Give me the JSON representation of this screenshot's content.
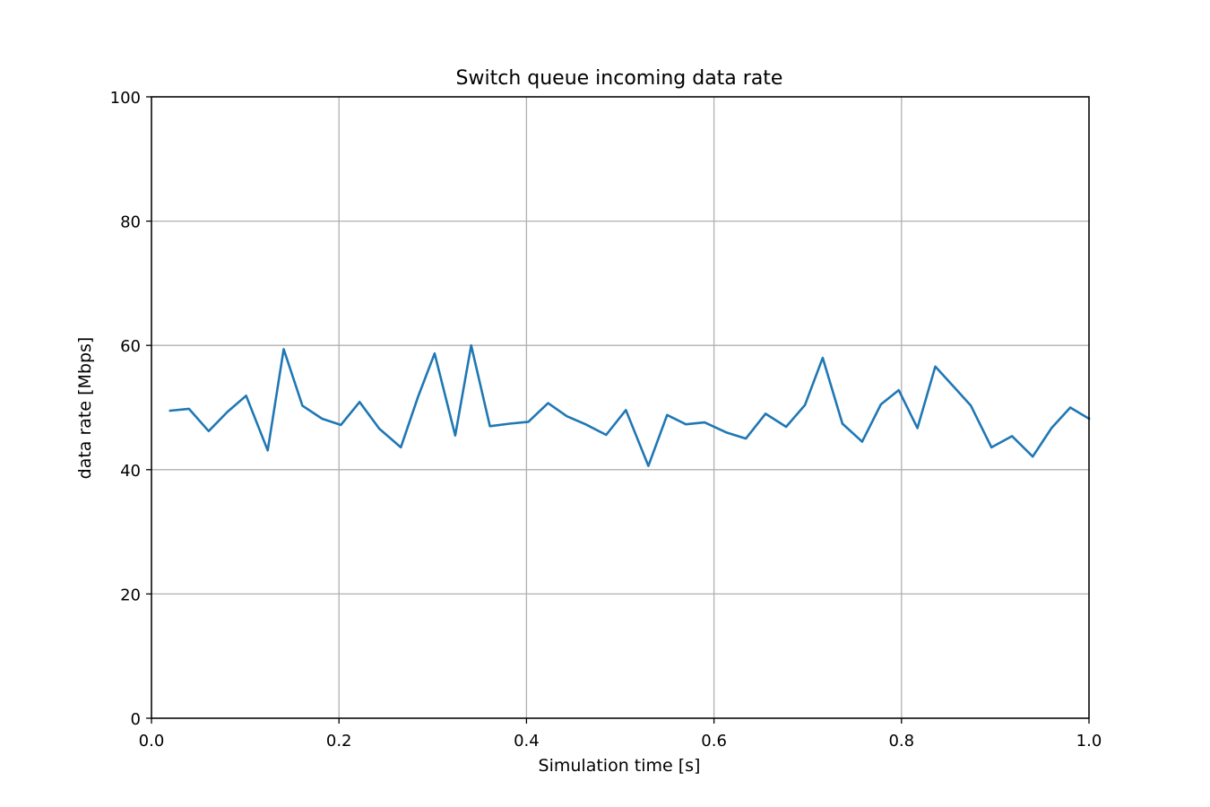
{
  "chart_data": {
    "type": "line",
    "title": "Switch queue incoming data rate",
    "xlabel": "Simulation time [s]",
    "ylabel": "data rate [Mbps]",
    "xlim": [
      0.0,
      1.0
    ],
    "ylim": [
      0,
      100
    ],
    "xticks": [
      "0.0",
      "0.2",
      "0.4",
      "0.6",
      "0.8",
      "1.0"
    ],
    "yticks": [
      "0",
      "20",
      "40",
      "60",
      "80",
      "100"
    ],
    "grid": true,
    "colors": {
      "line": "#1f77b4",
      "grid": "#b0b0b0",
      "axes": "#000000"
    },
    "series": [
      {
        "x": [
          0.02,
          0.04,
          0.061,
          0.081,
          0.101,
          0.124,
          0.141,
          0.161,
          0.182,
          0.202,
          0.222,
          0.243,
          0.266,
          0.284,
          0.302,
          0.324,
          0.341,
          0.361,
          0.382,
          0.402,
          0.423,
          0.443,
          0.463,
          0.485,
          0.506,
          0.53,
          0.55,
          0.57,
          0.59,
          0.613,
          0.634,
          0.655,
          0.677,
          0.697,
          0.716,
          0.737,
          0.758,
          0.778,
          0.797,
          0.817,
          0.836,
          0.856,
          0.874,
          0.896,
          0.918,
          0.94,
          0.96,
          0.98,
          1.0
        ],
        "y": [
          49.5,
          49.8,
          46.2,
          49.3,
          51.9,
          43.1,
          59.4,
          50.3,
          48.2,
          47.2,
          50.9,
          46.6,
          43.6,
          51.6,
          58.7,
          45.5,
          60.0,
          47.0,
          47.4,
          47.7,
          50.7,
          48.6,
          47.3,
          45.6,
          49.6,
          40.6,
          48.8,
          47.3,
          47.6,
          46.0,
          45.0,
          49.0,
          46.9,
          50.4,
          58.0,
          47.4,
          44.5,
          50.5,
          52.8,
          46.7,
          56.6,
          53.3,
          50.3,
          43.6,
          45.4,
          42.1,
          46.7,
          50.0,
          48.2
        ]
      }
    ]
  }
}
